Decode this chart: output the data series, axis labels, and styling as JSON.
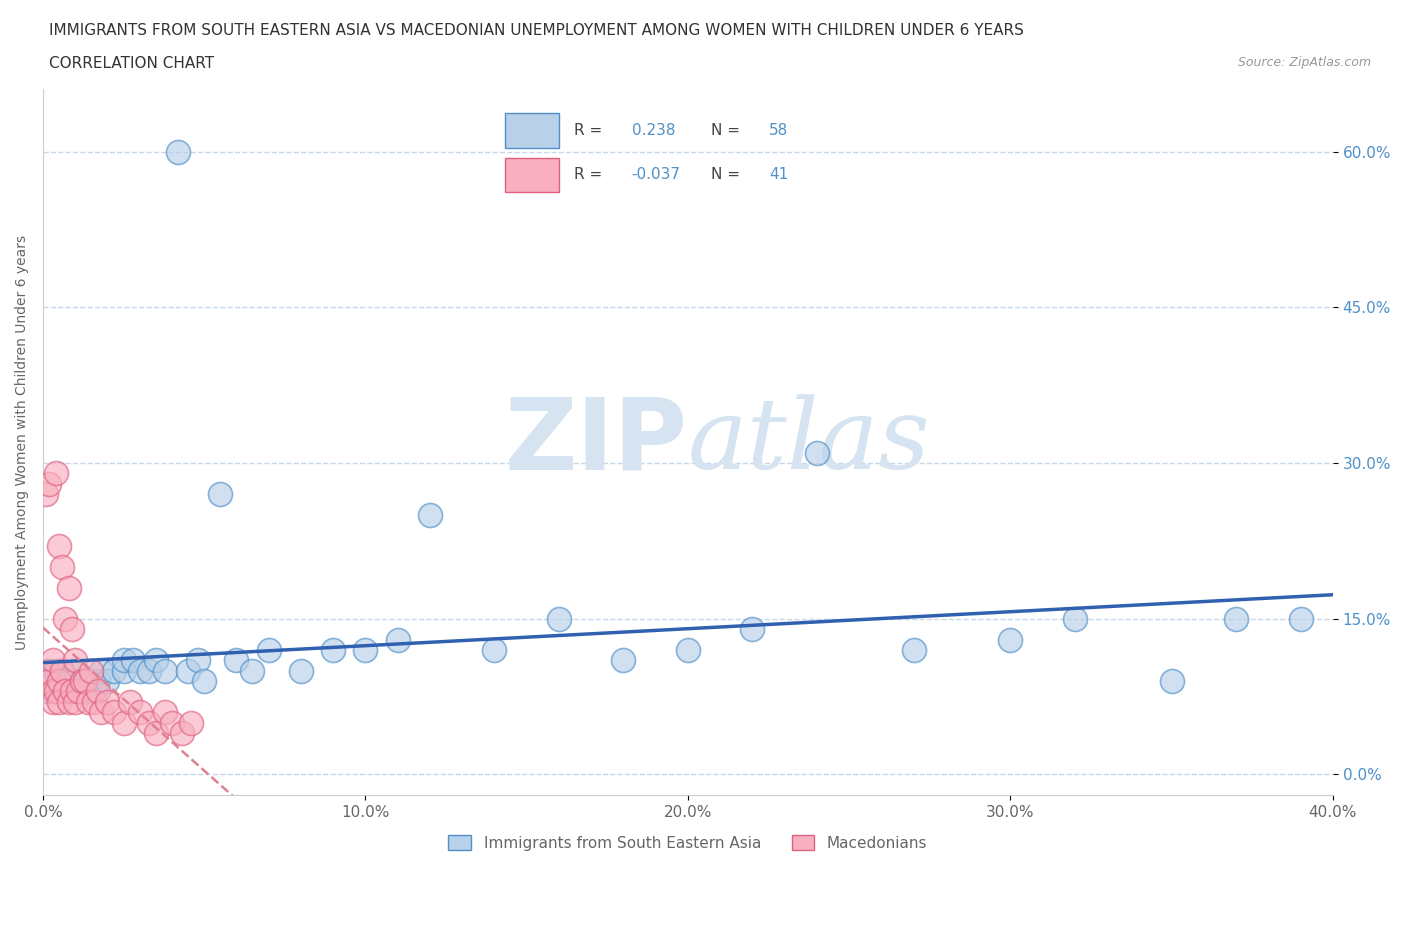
{
  "title": "IMMIGRANTS FROM SOUTH EASTERN ASIA VS MACEDONIAN UNEMPLOYMENT AMONG WOMEN WITH CHILDREN UNDER 6 YEARS",
  "subtitle": "CORRELATION CHART",
  "source": "Source: ZipAtlas.com",
  "ylabel": "Unemployment Among Women with Children Under 6 years",
  "legend_label_1": "Immigrants from South Eastern Asia",
  "legend_label_2": "Macedonians",
  "R1": 0.238,
  "N1": 58,
  "R2": -0.037,
  "N2": 41,
  "color_blue_fill": "#b8d0e8",
  "color_blue_edge": "#5090c8",
  "color_pink_fill": "#f8b0c0",
  "color_pink_edge": "#e06080",
  "color_blue_line": "#3060b0",
  "color_pink_line": "#e08090",
  "watermark_color": "#d5e4f0",
  "xlim": [
    0.0,
    0.4
  ],
  "ylim": [
    -0.02,
    0.66
  ],
  "xticks": [
    0.0,
    0.1,
    0.2,
    0.3,
    0.4
  ],
  "yticks": [
    0.0,
    0.15,
    0.3,
    0.45,
    0.6
  ],
  "blue_x": [
    0.001,
    0.002,
    0.002,
    0.003,
    0.003,
    0.004,
    0.005,
    0.005,
    0.006,
    0.007,
    0.007,
    0.008,
    0.009,
    0.01,
    0.01,
    0.011,
    0.012,
    0.012,
    0.013,
    0.014,
    0.015,
    0.016,
    0.017,
    0.018,
    0.02,
    0.022,
    0.025,
    0.025,
    0.028,
    0.03,
    0.033,
    0.035,
    0.038,
    0.042,
    0.045,
    0.048,
    0.05,
    0.055,
    0.06,
    0.065,
    0.07,
    0.08,
    0.09,
    0.1,
    0.11,
    0.12,
    0.14,
    0.16,
    0.18,
    0.2,
    0.22,
    0.24,
    0.27,
    0.3,
    0.32,
    0.35,
    0.37,
    0.39
  ],
  "blue_y": [
    0.08,
    0.09,
    0.1,
    0.09,
    0.08,
    0.1,
    0.09,
    0.08,
    0.09,
    0.08,
    0.09,
    0.09,
    0.08,
    0.09,
    0.1,
    0.08,
    0.09,
    0.08,
    0.09,
    0.08,
    0.09,
    0.08,
    0.09,
    0.1,
    0.09,
    0.1,
    0.1,
    0.11,
    0.11,
    0.1,
    0.1,
    0.11,
    0.1,
    0.6,
    0.1,
    0.11,
    0.09,
    0.27,
    0.11,
    0.1,
    0.12,
    0.1,
    0.12,
    0.12,
    0.13,
    0.25,
    0.12,
    0.15,
    0.11,
    0.12,
    0.14,
    0.31,
    0.12,
    0.13,
    0.15,
    0.09,
    0.15,
    0.15
  ],
  "pink_x": [
    0.001,
    0.001,
    0.002,
    0.002,
    0.003,
    0.003,
    0.003,
    0.004,
    0.004,
    0.005,
    0.005,
    0.005,
    0.006,
    0.006,
    0.007,
    0.007,
    0.008,
    0.008,
    0.009,
    0.009,
    0.01,
    0.01,
    0.011,
    0.012,
    0.013,
    0.014,
    0.015,
    0.016,
    0.017,
    0.018,
    0.02,
    0.022,
    0.025,
    0.027,
    0.03,
    0.033,
    0.035,
    0.038,
    0.04,
    0.043,
    0.046
  ],
  "pink_y": [
    0.1,
    0.27,
    0.09,
    0.28,
    0.11,
    0.08,
    0.07,
    0.29,
    0.08,
    0.22,
    0.09,
    0.07,
    0.2,
    0.1,
    0.15,
    0.08,
    0.18,
    0.07,
    0.14,
    0.08,
    0.11,
    0.07,
    0.08,
    0.09,
    0.09,
    0.07,
    0.1,
    0.07,
    0.08,
    0.06,
    0.07,
    0.06,
    0.05,
    0.07,
    0.06,
    0.05,
    0.04,
    0.06,
    0.05,
    0.04,
    0.05
  ],
  "background_color": "#ffffff",
  "grid_color": "#c8d8e8",
  "title_fontsize": 11,
  "subtitle_fontsize": 11,
  "source_fontsize": 9,
  "axis_label_fontsize": 10,
  "tick_fontsize": 11
}
